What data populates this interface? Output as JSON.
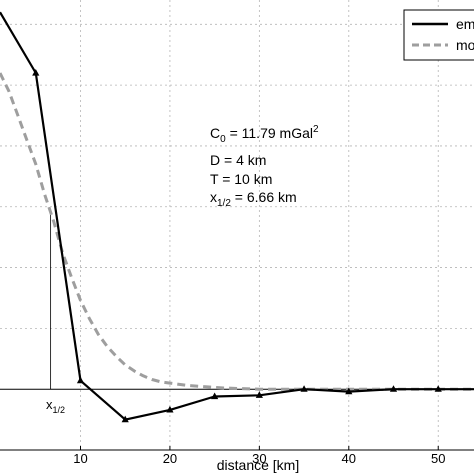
{
  "chart_data": {
    "type": "line",
    "xlabel": "distance [km]",
    "x_ticks": [
      10,
      20,
      30,
      40,
      50
    ],
    "xlim": [
      1,
      54
    ],
    "ylim": [
      -0.5,
      3.2
    ],
    "grid": true,
    "legend": {
      "placement": "top-right",
      "entries": [
        "em",
        "mo"
      ]
    },
    "series": [
      {
        "name": "em",
        "style": "solid",
        "color": "#000000",
        "marker": "triangle",
        "x": [
          1,
          5,
          10,
          15,
          20,
          25,
          30,
          35,
          40,
          45,
          50,
          54
        ],
        "y": [
          3.1,
          2.6,
          0.07,
          -0.25,
          -0.17,
          -0.06,
          -0.05,
          0.0,
          -0.02,
          0.0,
          0.0,
          0.0
        ]
      },
      {
        "name": "mo",
        "style": "dashed",
        "color": "#9e9e9e",
        "x": [
          1,
          2,
          3,
          4,
          5,
          6,
          7,
          8,
          9,
          10,
          11,
          12,
          13,
          14,
          15,
          16,
          17,
          18,
          19,
          20,
          22,
          24,
          26,
          28,
          30,
          35,
          40,
          45,
          50,
          54
        ],
        "y": [
          2.6,
          2.45,
          2.25,
          2.05,
          1.85,
          1.6,
          1.38,
          1.12,
          0.92,
          0.73,
          0.58,
          0.45,
          0.35,
          0.27,
          0.2,
          0.15,
          0.11,
          0.08,
          0.06,
          0.05,
          0.03,
          0.02,
          0.01,
          0.005,
          0.0,
          0.0,
          0.0,
          0.0,
          0.0,
          0.0
        ]
      }
    ],
    "half_marker_x": 6.66,
    "annotation": {
      "c0": {
        "base": "C",
        "sub": "0",
        "text": " = 11.79 mGal",
        "sup": "2"
      },
      "d": "D = 4 km",
      "t": "T = 10 km",
      "x_half": {
        "base": "x",
        "sub": "1/2",
        "text": " = 6.66 km"
      }
    },
    "axis_annotation": {
      "base": "x",
      "sub": "1/2"
    }
  }
}
